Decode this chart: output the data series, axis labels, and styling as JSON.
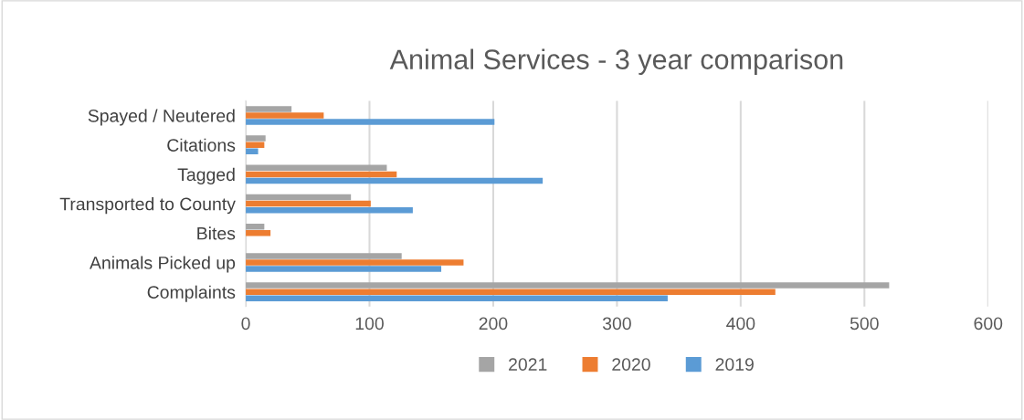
{
  "chart_data": {
    "type": "bar",
    "orientation": "horizontal",
    "title": "Animal Services - 3 year comparison",
    "categories": [
      "Spayed / Neutered",
      "Citations",
      "Tagged",
      "Transported to County",
      "Bites",
      "Animals Picked up",
      "Complaints"
    ],
    "series": [
      {
        "name": "2021",
        "color": "#a5a5a5",
        "values": [
          37,
          16,
          114,
          85,
          15,
          126,
          520
        ]
      },
      {
        "name": "2020",
        "color": "#ed7d31",
        "values": [
          63,
          15,
          122,
          101,
          20,
          176,
          428
        ]
      },
      {
        "name": "2019",
        "color": "#5b9bd5",
        "values": [
          201,
          10,
          240,
          135,
          null,
          158,
          341
        ]
      }
    ],
    "xlim": [
      0,
      600
    ],
    "xticks": [
      0,
      100,
      200,
      300,
      400,
      500,
      600
    ],
    "grid": "x",
    "legend": "bottom"
  }
}
